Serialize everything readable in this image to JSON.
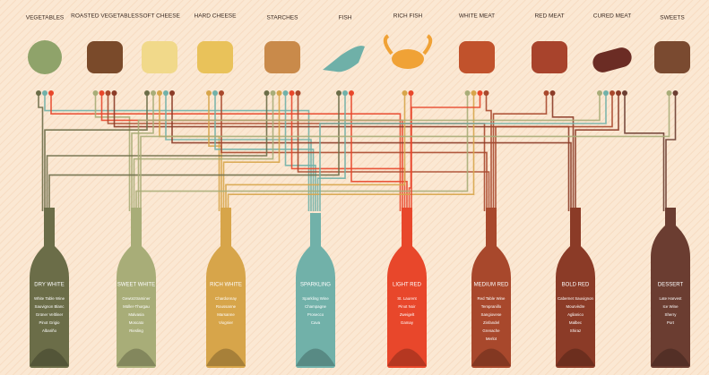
{
  "foods": [
    "VEGETABLES",
    "ROASTED VEGETABLES",
    "SOFT CHEESE",
    "HARD CHEESE",
    "STARCHES",
    "FISH",
    "RICH FISH",
    "WHITE MEAT",
    "RED MEAT",
    "CURED MEAT",
    "SWEETS"
  ],
  "wines": [
    {
      "name": "DRY WHITE",
      "color": "#6b6d48",
      "varietals": [
        "White Table Wine",
        "Sauvignon Blanc",
        "Grüner Veltliner",
        "Pinot Grigio",
        "Albariño"
      ]
    },
    {
      "name": "SWEET WHITE",
      "color": "#a8ad78",
      "varietals": [
        "Gewürztraminer",
        "Müller-Thurgau",
        "Malvasia",
        "Moscato",
        "Riesling"
      ]
    },
    {
      "name": "RICH WHITE",
      "color": "#d7a54a",
      "varietals": [
        "Chardonnay",
        "Roussanne",
        "Marsanne",
        "Viognier"
      ]
    },
    {
      "name": "SPARKLING",
      "color": "#71b1a9",
      "varietals": [
        "Sparkling Wine",
        "Champagne",
        "Prosecco",
        "Cava"
      ]
    },
    {
      "name": "LIGHT RED",
      "color": "#e8472b",
      "varietals": [
        "St. Laurent",
        "Pinot Noir",
        "Zweigelt",
        "Gamay"
      ]
    },
    {
      "name": "MEDIUM RED",
      "color": "#a8482c",
      "varietals": [
        "Red Table Wine",
        "Tempranillo",
        "Sangiovese",
        "Zinfandel",
        "Grenache",
        "Merlot"
      ]
    },
    {
      "name": "BOLD RED",
      "color": "#8b3b27",
      "varietals": [
        "Cabernet Sauvignon",
        "Mourvèdre",
        "Aglianico",
        "Malbec",
        "Shiraz"
      ]
    },
    {
      "name": "DESSERT",
      "color": "#6b3d31",
      "varietals": [
        "Late Harvest",
        "Ice Wine",
        "Sherry",
        "Port"
      ]
    }
  ]
}
